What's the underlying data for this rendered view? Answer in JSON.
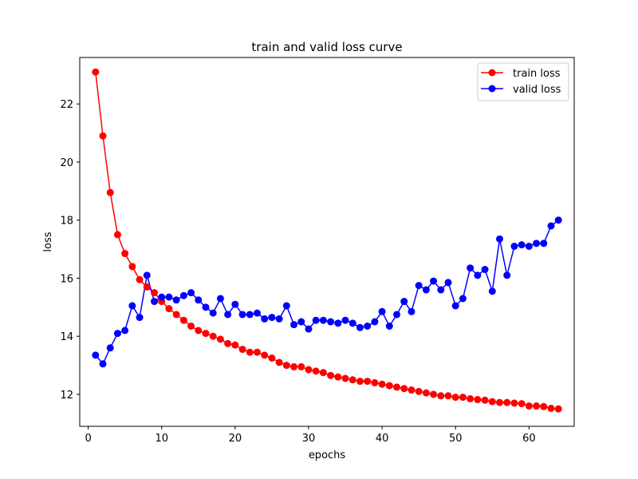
{
  "chart_data": {
    "type": "line",
    "title": "train and valid loss curve",
    "xlabel": "epochs",
    "ylabel": "loss",
    "xlim": [
      -1.15,
      66.15
    ],
    "ylim": [
      10.9,
      23.6
    ],
    "xticks": [
      0,
      10,
      20,
      30,
      40,
      50,
      60
    ],
    "yticks": [
      12,
      14,
      16,
      18,
      20,
      22
    ],
    "grid": false,
    "legend": "top-right",
    "x": [
      1,
      2,
      3,
      4,
      5,
      6,
      7,
      8,
      9,
      10,
      11,
      12,
      13,
      14,
      15,
      16,
      17,
      18,
      19,
      20,
      21,
      22,
      23,
      24,
      25,
      26,
      27,
      28,
      29,
      30,
      31,
      32,
      33,
      34,
      35,
      36,
      37,
      38,
      39,
      40,
      41,
      42,
      43,
      44,
      45,
      46,
      47,
      48,
      49,
      50,
      51,
      52,
      53,
      54,
      55,
      56,
      57,
      58,
      59,
      60,
      61,
      62,
      63,
      64
    ],
    "series": [
      {
        "name": "train loss",
        "color": "#ff0000",
        "values": [
          23.1,
          20.9,
          18.95,
          17.5,
          16.85,
          16.4,
          15.95,
          15.7,
          15.5,
          15.2,
          14.95,
          14.75,
          14.55,
          14.35,
          14.2,
          14.1,
          14.0,
          13.9,
          13.75,
          13.7,
          13.55,
          13.45,
          13.45,
          13.35,
          13.25,
          13.1,
          13.0,
          12.95,
          12.95,
          12.85,
          12.8,
          12.75,
          12.65,
          12.6,
          12.55,
          12.5,
          12.45,
          12.45,
          12.4,
          12.35,
          12.3,
          12.25,
          12.2,
          12.15,
          12.1,
          12.05,
          12.0,
          11.95,
          11.95,
          11.9,
          11.9,
          11.85,
          11.82,
          11.8,
          11.75,
          11.72,
          11.72,
          11.7,
          11.68,
          11.6,
          11.6,
          11.58,
          11.52,
          11.5
        ]
      },
      {
        "name": "valid loss",
        "color": "#0000ff",
        "values": [
          13.35,
          13.05,
          13.6,
          14.1,
          14.2,
          15.05,
          14.65,
          16.1,
          15.2,
          15.35,
          15.35,
          15.25,
          15.4,
          15.5,
          15.25,
          15.0,
          14.8,
          15.3,
          14.75,
          15.1,
          14.75,
          14.75,
          14.8,
          14.6,
          14.65,
          14.6,
          15.05,
          14.4,
          14.5,
          14.25,
          14.55,
          14.55,
          14.5,
          14.45,
          14.55,
          14.45,
          14.3,
          14.35,
          14.5,
          14.85,
          14.35,
          14.75,
          15.2,
          14.85,
          15.75,
          15.6,
          15.9,
          15.6,
          15.85,
          15.05,
          15.3,
          16.35,
          16.1,
          16.3,
          15.55,
          17.35,
          16.1,
          17.1,
          17.15,
          17.1,
          17.2,
          17.2,
          17.8,
          18.0
        ]
      }
    ]
  }
}
